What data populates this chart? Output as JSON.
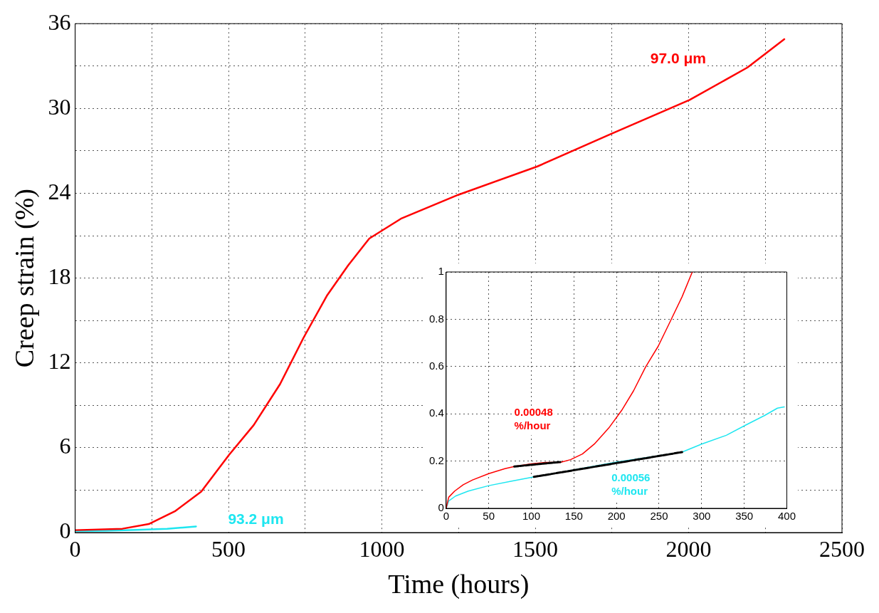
{
  "chart_data": [
    {
      "type": "line",
      "xlabel": "Time (hours)",
      "ylabel": "Creep strain (%)",
      "xlim": [
        0,
        2500
      ],
      "ylim": [
        0,
        36
      ],
      "xticks": [
        0,
        {
          "value": 250,
          "label": null
        },
        500,
        {
          "value": 750,
          "label": null
        },
        1000,
        {
          "value": 1250,
          "label": null
        },
        1500,
        {
          "value": 1750,
          "label": null
        },
        2000,
        {
          "value": 2250,
          "label": null
        },
        2500
      ],
      "yticks": [
        0,
        {
          "value": 3,
          "label": null
        },
        6,
        {
          "value": 9,
          "label": null
        },
        12,
        {
          "value": 15,
          "label": null
        },
        18,
        {
          "value": 21,
          "label": null
        },
        24,
        {
          "value": 27,
          "label": null
        },
        30,
        {
          "value": 33,
          "label": null
        },
        36
      ],
      "grid": true,
      "marker": "none",
      "series": [
        {
          "name": "97.0 μm",
          "color": "#ff0000",
          "x": [
            0,
            154,
            240,
            325,
            411,
            502,
            582,
            668,
            745,
            822,
            890,
            959,
            1062,
            1250,
            1507,
            1747,
            2003,
            2192,
            2312
          ],
          "values": [
            0.17,
            0.27,
            0.6,
            1.5,
            2.9,
            5.5,
            7.6,
            10.5,
            13.8,
            16.8,
            18.9,
            20.8,
            22.2,
            23.9,
            25.9,
            28.2,
            30.6,
            32.9,
            34.9
          ]
        },
        {
          "name": "93.2 μm",
          "color": "#1ee6f0",
          "x": [
            0,
            100,
            200,
            300,
            394
          ],
          "values": [
            0.1,
            0.13,
            0.19,
            0.27,
            0.43
          ]
        }
      ]
    },
    {
      "type": "line",
      "xlim": [
        0,
        400
      ],
      "ylim": [
        0,
        1
      ],
      "xticks": [
        0,
        50,
        100,
        150,
        200,
        250,
        300,
        350,
        400
      ],
      "yticks": [
        0,
        0.2,
        0.4,
        0.6,
        0.8,
        1
      ],
      "grid": true,
      "marker": "none",
      "annotations": [
        "0.00048\n%/hour",
        "0.00056\n%/hour"
      ],
      "series": [
        {
          "color": "#ff0000",
          "x": [
            0,
            3,
            10,
            20,
            31,
            50,
            69,
            80,
            100,
            117,
            134,
            146,
            160,
            174,
            191,
            206,
            220,
            234,
            249,
            263,
            277,
            289
          ],
          "values": [
            0,
            0.047,
            0.073,
            0.1,
            0.12,
            0.147,
            0.168,
            0.177,
            0.188,
            0.194,
            0.194,
            0.206,
            0.23,
            0.272,
            0.34,
            0.414,
            0.497,
            0.597,
            0.686,
            0.79,
            0.895,
            1.0
          ]
        },
        {
          "color": "#1ee6f0",
          "x": [
            0,
            3,
            11,
            26,
            50,
            77,
            100,
            134,
            200,
            249,
            277,
            300,
            329,
            351,
            374,
            389,
            397
          ],
          "values": [
            0,
            0.031,
            0.052,
            0.073,
            0.096,
            0.115,
            0.131,
            0.152,
            0.196,
            0.222,
            0.238,
            0.272,
            0.309,
            0.351,
            0.393,
            0.424,
            0.429
          ]
        },
        {
          "color": "#000000",
          "line_style": "dashed",
          "x": [
            80,
            134
          ],
          "values": [
            0.177,
            0.196
          ]
        },
        {
          "color": "#000000",
          "line_style": "dashed",
          "x": [
            103,
            277
          ],
          "values": [
            0.133,
            0.238
          ]
        }
      ]
    }
  ]
}
